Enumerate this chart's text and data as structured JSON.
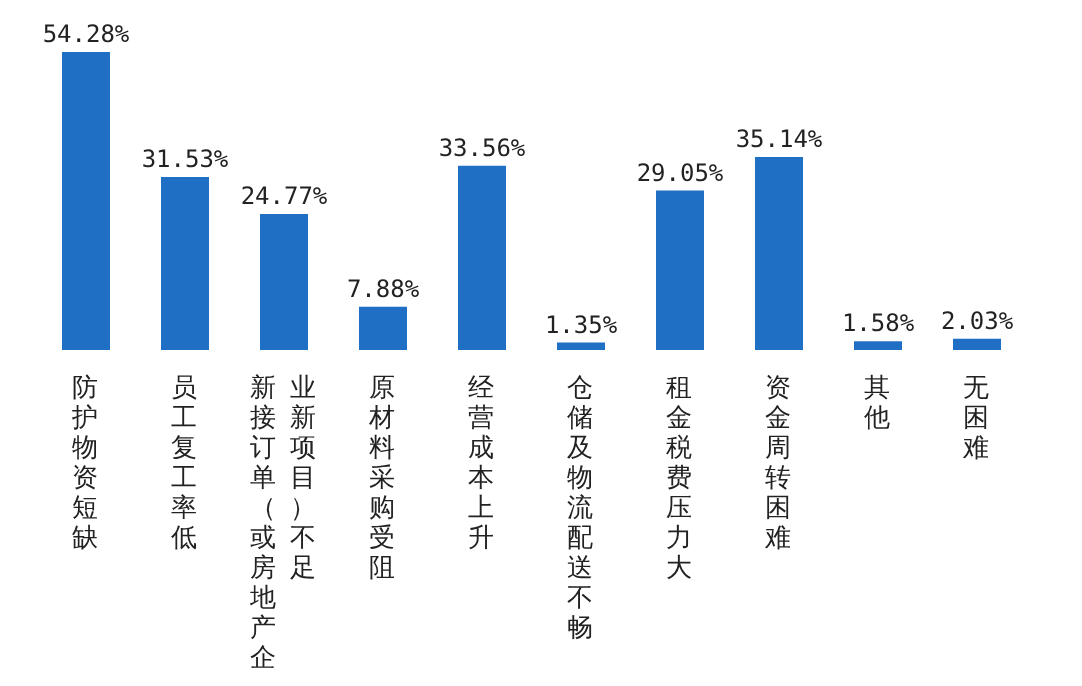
{
  "chart_data": {
    "type": "bar",
    "categories": [
      "防护物资短缺",
      "员工复工率低",
      "新接订单（或房地产企业新项目）不足",
      "原材料采购受阻",
      "经营成本上升",
      "仓储及物流配送不畅",
      "租金税费压力大",
      "资金周转困难",
      "其他",
      "无困难"
    ],
    "values": [
      54.28,
      31.53,
      24.77,
      7.88,
      33.56,
      1.35,
      29.05,
      35.14,
      1.58,
      2.03
    ],
    "value_labels": [
      "54.28%",
      "31.53%",
      "24.77%",
      "7.88%",
      "33.56%",
      "1.35%",
      "29.05%",
      "35.14%",
      "1.58%",
      "2.03%"
    ],
    "color": "#1f6fc5",
    "tick_labels": "x"
  }
}
